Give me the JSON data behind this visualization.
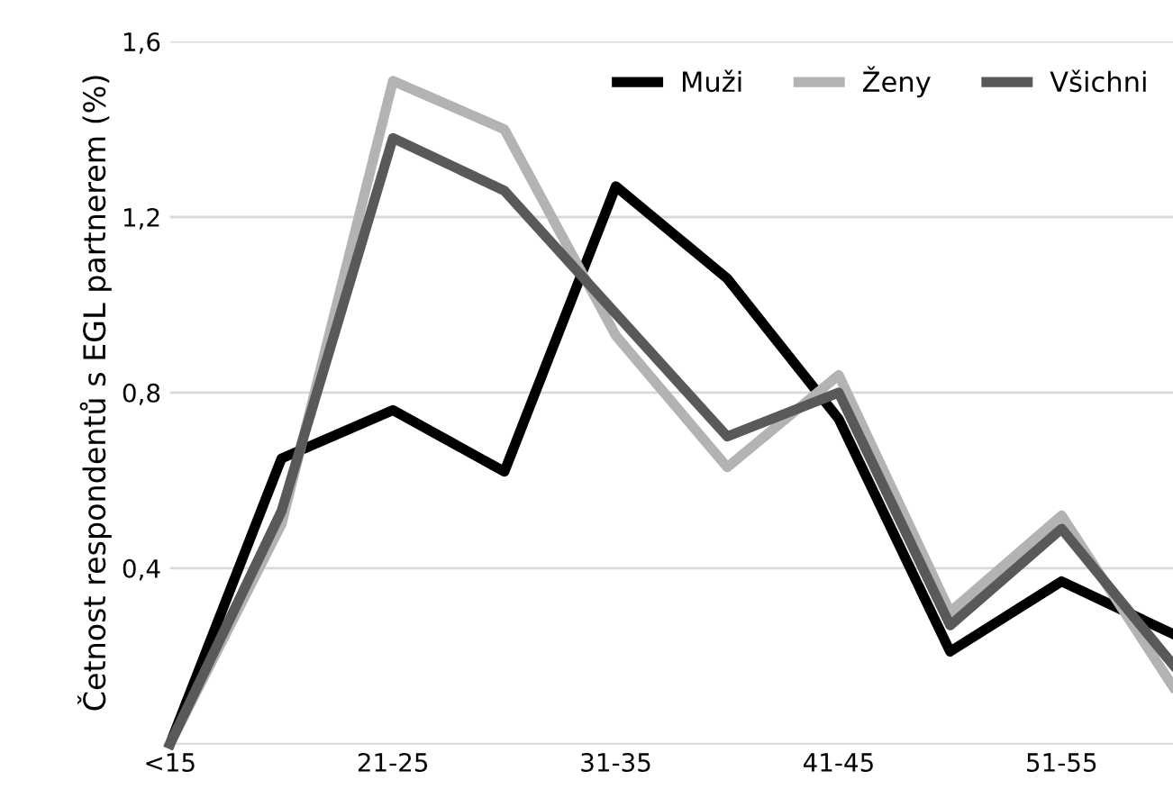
{
  "chart_data": {
    "type": "line",
    "ylabel": "Četnost respondentů s EGL partnerem (%)",
    "categories": [
      "<15",
      null,
      "21-25",
      null,
      "31-35",
      null,
      "41-45",
      null,
      "51-55",
      null
    ],
    "series": [
      {
        "name": "Muži",
        "color": "#000000",
        "values": [
          0,
          0.65,
          0.76,
          0.62,
          1.27,
          1.06,
          0.74,
          0.21,
          0.37,
          0.25
        ]
      },
      {
        "name": "Ženy",
        "color": "#b3b3b3",
        "values": [
          0,
          0.5,
          1.51,
          1.4,
          0.93,
          0.63,
          0.84,
          0.3,
          0.52,
          0.13
        ]
      },
      {
        "name": "Všichni",
        "color": "#595959",
        "values": [
          0,
          0.53,
          1.38,
          1.26,
          0.98,
          0.7,
          0.8,
          0.27,
          0.49,
          0.18
        ]
      }
    ],
    "ylim": [
      0,
      1.6
    ],
    "yticks": [
      {
        "value": 0.4,
        "label": "0,4"
      },
      {
        "value": 0.8,
        "label": "0,8"
      },
      {
        "value": 1.2,
        "label": "1,2"
      },
      {
        "value": 1.6,
        "label": "1,6"
      }
    ],
    "grid": "y",
    "legend": "top right",
    "marker": "none",
    "line_style": "solid"
  }
}
